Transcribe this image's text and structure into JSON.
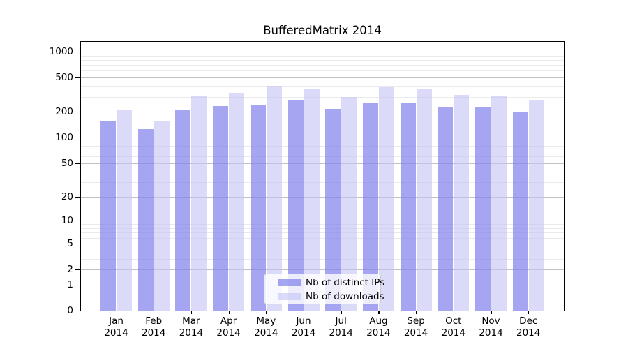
{
  "title": "BufferedMatrix 2014",
  "chart_data": {
    "type": "bar",
    "title": "BufferedMatrix 2014",
    "scale": "log1p",
    "categories": [
      "Jan",
      "Feb",
      "Mar",
      "Apr",
      "May",
      "Jun",
      "Jul",
      "Aug",
      "Sep",
      "Oct",
      "Nov",
      "Dec"
    ],
    "x_year_label": "2014",
    "series": [
      {
        "name": "Nb of distinct IPs",
        "color": "rgba(130,130,235,0.72)",
        "values": [
          156,
          126,
          207,
          233,
          238,
          276,
          218,
          250,
          256,
          228,
          230,
          202
        ]
      },
      {
        "name": "Nb of downloads",
        "color": "rgba(195,195,245,0.6)",
        "values": [
          210,
          155,
          302,
          335,
          398,
          370,
          295,
          387,
          364,
          315,
          310,
          274
        ]
      }
    ],
    "ylim": [
      0,
      1000
    ],
    "y_major_ticks": [
      0,
      1,
      2,
      5,
      10,
      20,
      50,
      100,
      200,
      500,
      1000
    ],
    "y_minor_ticks": [
      3,
      4,
      6,
      7,
      8,
      9,
      30,
      40,
      60,
      70,
      80,
      90,
      300,
      400,
      600,
      700,
      800,
      900
    ],
    "grid": "on",
    "legend_position": "lower center"
  },
  "colors": {
    "bar_distinct_ips_solid": "#a5a5f1",
    "bar_downloads_solid": "#dbdbf9",
    "grid_major": "#c2c2c2",
    "grid_minor": "#eaeaea",
    "axis": "#000000",
    "background": "#ffffff"
  },
  "legend": {
    "items": [
      "Nb of distinct IPs",
      "Nb of downloads"
    ]
  }
}
